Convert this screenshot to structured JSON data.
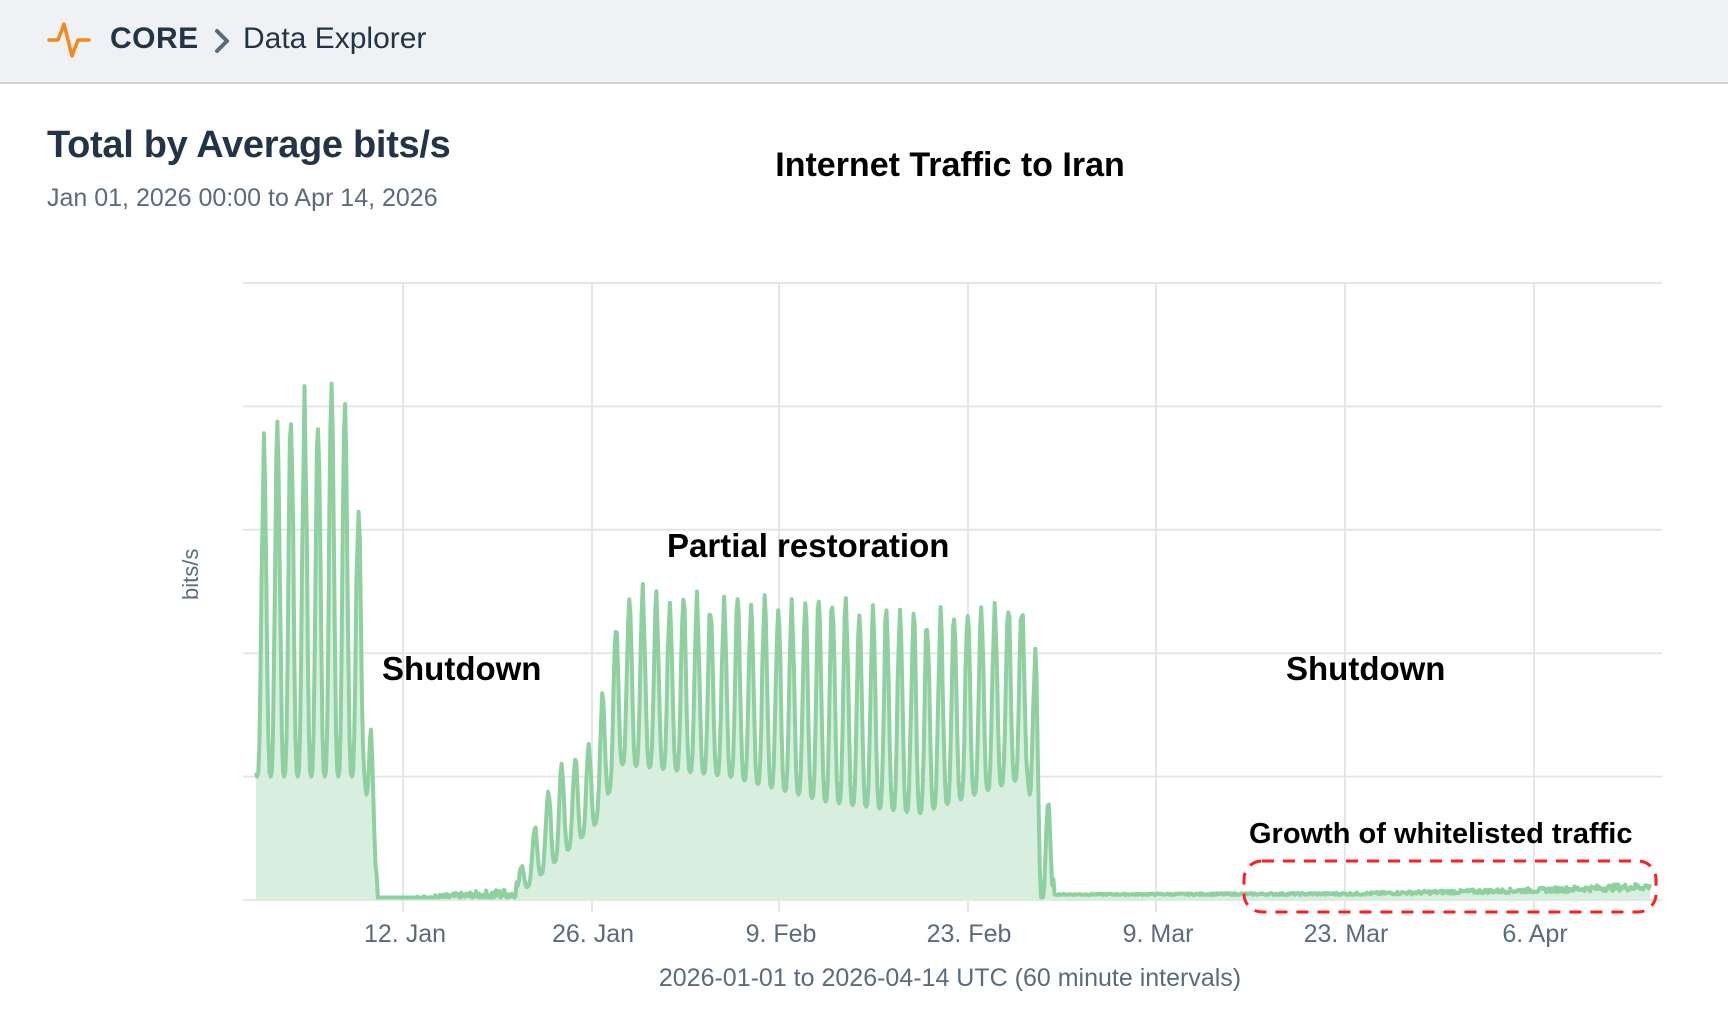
{
  "header": {
    "brand": "CORE",
    "breadcrumb": "Data Explorer",
    "logo_icon": "activity-pulse-icon",
    "separator_icon": "chevron-right-icon",
    "accent_color": "#f08a1c"
  },
  "page": {
    "title": "Total by Average bits/s",
    "subtitle": "Jan 01, 2026 00:00 to Apr 14, 2026"
  },
  "chart_data": {
    "type": "area",
    "title": "Internet Traffic to Iran",
    "xlabel": "2026-01-01 to 2026-04-14 UTC (60 minute intervals)",
    "ylabel": "bits/s",
    "x_ticks": [
      "12. Jan",
      "26. Jan",
      "9. Feb",
      "23. Feb",
      "9. Mar",
      "23. Mar",
      "6. Apr"
    ],
    "y_ticks_labeled": false,
    "grid": true,
    "ylim_relative": [
      0,
      5
    ],
    "line_color": "#8fd0a0",
    "fill_color": "#d8eedf",
    "annotations": [
      {
        "text": "Shutdown",
        "period": "2026-01-09 to 2026-01-22"
      },
      {
        "text": "Partial restoration",
        "period": "2026-01-27 to 2026-02-28"
      },
      {
        "text": "Shutdown",
        "period": "2026-03-01 to 2026-04-14"
      },
      {
        "text": "Growth of whitelisted traffic",
        "period": "2026-03-19 to 2026-04-14",
        "highlight": "red dashed box",
        "highlight_color": "#ff1e1e"
      }
    ],
    "daily_peaks_relative": [
      {
        "date": "2026-01-01",
        "low": 1.0,
        "high": 3.6
      },
      {
        "date": "2026-01-02",
        "low": 1.0,
        "high": 4.0
      },
      {
        "date": "2026-01-03",
        "low": 1.0,
        "high": 4.2
      },
      {
        "date": "2026-01-04",
        "low": 1.0,
        "high": 4.2
      },
      {
        "date": "2026-01-05",
        "low": 1.0,
        "high": 4.2
      },
      {
        "date": "2026-01-06",
        "low": 1.0,
        "high": 4.3
      },
      {
        "date": "2026-01-07",
        "low": 1.0,
        "high": 4.6
      },
      {
        "date": "2026-01-08",
        "low": 1.0,
        "high": 3.9
      },
      {
        "date": "2026-01-09",
        "low": 1.0,
        "high": 3.0
      },
      {
        "date": "2026-01-10",
        "low": 0.0,
        "high": 0.0
      },
      {
        "date": "2026-01-20",
        "low": 0.0,
        "high": 0.1
      },
      {
        "date": "2026-01-23",
        "low": 0.3,
        "high": 1.1
      },
      {
        "date": "2026-01-26",
        "low": 0.6,
        "high": 1.3
      },
      {
        "date": "2026-01-28",
        "low": 1.1,
        "high": 2.6
      },
      {
        "date": "2026-02-05",
        "low": 1.0,
        "high": 2.5
      },
      {
        "date": "2026-02-12",
        "low": 0.8,
        "high": 2.6
      },
      {
        "date": "2026-02-19",
        "low": 0.7,
        "high": 2.4
      },
      {
        "date": "2026-02-27",
        "low": 1.0,
        "high": 2.5
      },
      {
        "date": "2026-02-28",
        "low": 0.0,
        "high": 1.8
      },
      {
        "date": "2026-03-01",
        "low": 0.04,
        "high": 0.05
      },
      {
        "date": "2026-03-23",
        "low": 0.04,
        "high": 0.06
      },
      {
        "date": "2026-04-06",
        "low": 0.06,
        "high": 0.1
      },
      {
        "date": "2026-04-14",
        "low": 0.08,
        "high": 0.14
      }
    ]
  }
}
